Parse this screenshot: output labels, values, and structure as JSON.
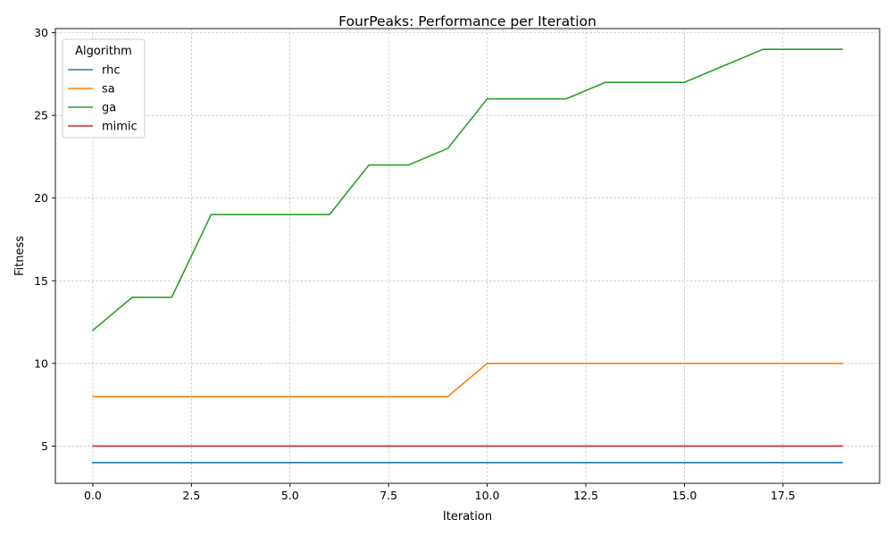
{
  "chart_data": {
    "type": "line",
    "title": "FourPeaks: Performance per Iteration",
    "xlabel": "Iteration",
    "ylabel": "Fitness",
    "xlim": [
      -0.95,
      19.95
    ],
    "ylim": [
      2.75,
      30.25
    ],
    "xticks": [
      0.0,
      2.5,
      5.0,
      7.5,
      10.0,
      12.5,
      15.0,
      17.5
    ],
    "xtick_labels": [
      "0.0",
      "2.5",
      "5.0",
      "7.5",
      "10.0",
      "12.5",
      "15.0",
      "17.5"
    ],
    "yticks": [
      5,
      10,
      15,
      20,
      25,
      30
    ],
    "ytick_labels": [
      "5",
      "10",
      "15",
      "20",
      "25",
      "30"
    ],
    "grid": true,
    "legend": {
      "title": "Algorithm",
      "placement": "top-left"
    },
    "x": [
      0,
      1,
      2,
      3,
      4,
      5,
      6,
      7,
      8,
      9,
      10,
      11,
      12,
      13,
      14,
      15,
      16,
      17,
      18,
      19
    ],
    "series": [
      {
        "name": "rhc",
        "color": "#1f77b4",
        "values": [
          4,
          4,
          4,
          4,
          4,
          4,
          4,
          4,
          4,
          4,
          4,
          4,
          4,
          4,
          4,
          4,
          4,
          4,
          4,
          4
        ]
      },
      {
        "name": "sa",
        "color": "#ff7f0e",
        "values": [
          8,
          8,
          8,
          8,
          8,
          8,
          8,
          8,
          8,
          8,
          10,
          10,
          10,
          10,
          10,
          10,
          10,
          10,
          10,
          10
        ]
      },
      {
        "name": "ga",
        "color": "#2ca02c",
        "values": [
          12,
          14,
          14,
          19,
          19,
          19,
          19,
          22,
          22,
          23,
          26,
          26,
          26,
          27,
          27,
          27,
          28,
          29,
          29,
          29
        ]
      },
      {
        "name": "mimic",
        "color": "#d62728",
        "values": [
          5,
          5,
          5,
          5,
          5,
          5,
          5,
          5,
          5,
          5,
          5,
          5,
          5,
          5,
          5,
          5,
          5,
          5,
          5,
          5
        ]
      }
    ]
  }
}
